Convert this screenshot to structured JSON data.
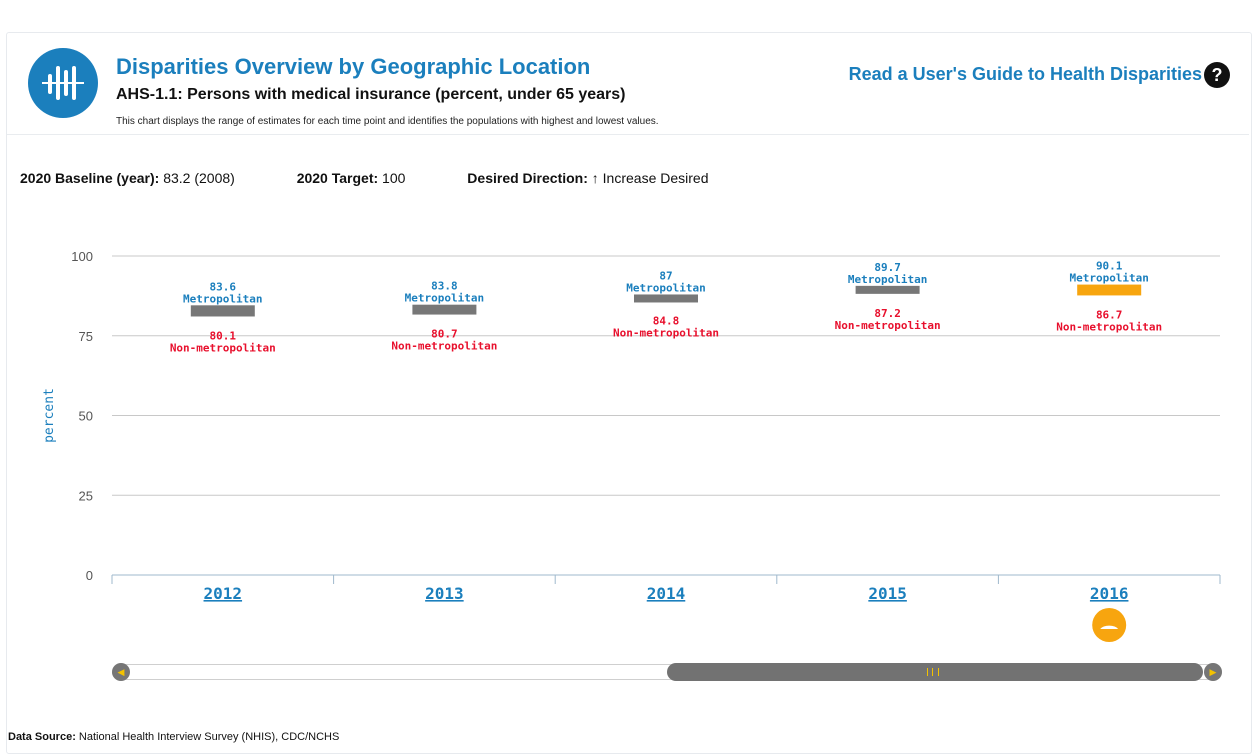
{
  "header": {
    "title": "Disparities Overview by Geographic Location",
    "subtitle": "AHS-1.1: Persons with medical insurance (percent, under 65 years)",
    "description": "This chart displays the range of estimates for each time point and identifies the populations with highest and lowest values.",
    "guide_link": "Read a User's Guide to Health Disparities",
    "help_icon_glyph": "?"
  },
  "stats": {
    "baseline_label": "2020 Baseline (year):",
    "baseline_value": "83.2 (2008)",
    "target_label": "2020 Target:",
    "target_value": "100",
    "direction_label": "Desired Direction:",
    "direction_value": "↑ Increase Desired"
  },
  "chart_data": {
    "type": "range",
    "xlabel": "",
    "ylabel": "percent",
    "ylim": [
      0,
      100
    ],
    "yticks": [
      0,
      25,
      50,
      75,
      100
    ],
    "categories": [
      "2012",
      "2013",
      "2014",
      "2015",
      "2016"
    ],
    "series": [
      {
        "name": "Metropolitan",
        "values": [
          83.6,
          83.8,
          87,
          89.7,
          90.1
        ]
      },
      {
        "name": "Non-metropolitan",
        "values": [
          80.1,
          80.7,
          84.8,
          87.2,
          86.7
        ]
      }
    ],
    "highlighted_category": "2016",
    "colors": {
      "high": "#1b7fbd",
      "low": "#e8102d",
      "bar": "#777777",
      "bar_highlight": "#f7a50f",
      "grid": "#c8c8c8",
      "axis": "#9fb8cc"
    }
  },
  "scrollbar": {
    "left_glyph": "◀",
    "right_glyph": "▶"
  },
  "footer": {
    "source_label": "Data Source:",
    "source_value": "National Health Interview Survey (NHIS), CDC/NCHS"
  }
}
